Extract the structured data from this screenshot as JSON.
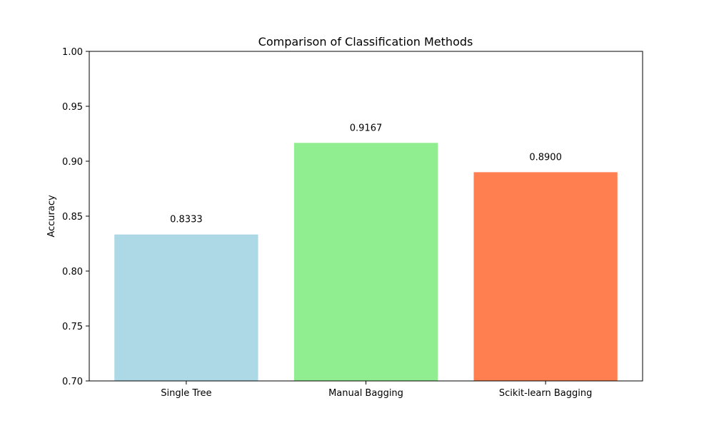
{
  "chart_data": {
    "type": "bar",
    "title": "Comparison of Classification Methods",
    "xlabel": "",
    "ylabel": "Accuracy",
    "categories": [
      "Single Tree",
      "Manual Bagging",
      "Scikit-learn Bagging"
    ],
    "values": [
      0.8333,
      0.9167,
      0.89
    ],
    "value_labels": [
      "0.8333",
      "0.9167",
      "0.8900"
    ],
    "colors": [
      "#add8e6",
      "#90ee90",
      "#ff7f50"
    ],
    "ylim": [
      0.7,
      1.0
    ],
    "yticks": [
      0.7,
      0.75,
      0.8,
      0.85,
      0.9,
      0.95,
      1.0
    ],
    "ytick_labels": [
      "0.70",
      "0.75",
      "0.80",
      "0.85",
      "0.90",
      "0.95",
      "1.00"
    ],
    "grid": false
  }
}
